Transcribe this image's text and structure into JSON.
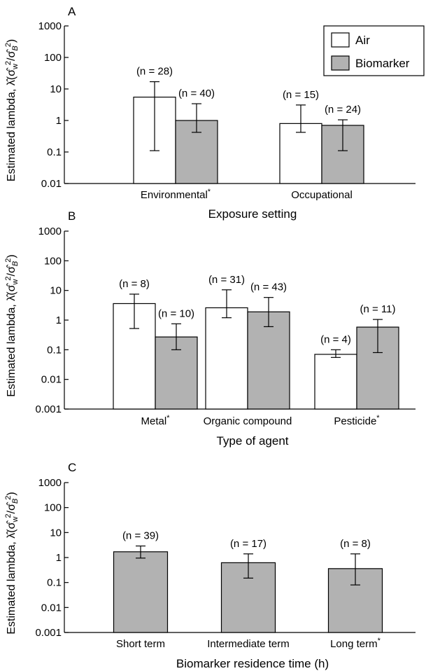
{
  "legend": {
    "items": [
      {
        "label": "Air",
        "color": "#ffffff"
      },
      {
        "label": "Biomarker",
        "color": "#b2b2b2"
      }
    ],
    "position": "top-right of panel A"
  },
  "ylabel_prefix": "Estimated lambda, λ̂(σ̂",
  "ylabel_mid": "w",
  "ylabel_sup1": "2",
  "ylabel_slash": "/σ̂",
  "ylabel_sub2": "B",
  "ylabel_sup2": "2",
  "ylabel_close": ")",
  "chart_data": [
    {
      "type": "bar",
      "panel": "A",
      "scale": "log",
      "ylim": [
        0.01,
        1000
      ],
      "ytick_labels": [
        "0.01",
        "0.1",
        "1",
        "10",
        "100",
        "1000"
      ],
      "xlabel": "Exposure setting",
      "categories": [
        "Environmental",
        "Occupational"
      ],
      "category_marks": [
        "*",
        ""
      ],
      "series": [
        {
          "name": "Air",
          "values": [
            5.5,
            0.8
          ],
          "err_low": [
            0.11,
            0.42
          ],
          "err_high": [
            17,
            3.1
          ],
          "n_labels": [
            "(n = 28)",
            "(n = 15)"
          ]
        },
        {
          "name": "Biomarker",
          "values": [
            1.0,
            0.7
          ],
          "err_low": [
            0.42,
            0.11
          ],
          "err_high": [
            3.4,
            1.05
          ],
          "n_labels": [
            "(n = 40)",
            "(n = 24)"
          ]
        }
      ]
    },
    {
      "type": "bar",
      "panel": "B",
      "scale": "log",
      "ylim": [
        0.001,
        1000
      ],
      "ytick_labels": [
        "0.001",
        "0.01",
        "0.1",
        "1",
        "10",
        "100",
        "1000"
      ],
      "xlabel": "Type of agent",
      "categories": [
        "Metal",
        "Organic compound",
        "Pesticide"
      ],
      "category_marks": [
        "*",
        "",
        "*"
      ],
      "series": [
        {
          "name": "Air",
          "values": [
            3.6,
            2.6,
            0.07
          ],
          "err_low": [
            0.52,
            1.2,
            0.055
          ],
          "err_high": [
            7.5,
            10.5,
            0.1
          ],
          "n_labels": [
            "(n = 8)",
            "(n = 31)",
            "(n = 4)"
          ]
        },
        {
          "name": "Biomarker",
          "values": [
            0.27,
            1.9,
            0.58
          ],
          "err_low": [
            0.1,
            0.6,
            0.08
          ],
          "err_high": [
            0.75,
            5.8,
            1.05
          ],
          "n_labels": [
            "(n = 10)",
            "(n = 43)",
            "(n = 11)"
          ]
        }
      ]
    },
    {
      "type": "bar",
      "panel": "C",
      "scale": "log",
      "ylim": [
        0.001,
        1000
      ],
      "ytick_labels": [
        "0.001",
        "0.01",
        "0.1",
        "1",
        "10",
        "100",
        "1000"
      ],
      "xlabel": "Biomarker residence time (h)",
      "categories": [
        "Short term",
        "Intermediate term",
        "Long term"
      ],
      "category_marks": [
        "",
        "",
        "*"
      ],
      "series": [
        {
          "name": "Biomarker",
          "values": [
            1.7,
            0.62,
            0.36
          ],
          "err_low": [
            0.95,
            0.15,
            0.08
          ],
          "err_high": [
            2.9,
            1.4,
            1.4
          ],
          "n_labels": [
            "(n = 39)",
            "(n = 17)",
            "(n = 8)"
          ]
        }
      ]
    }
  ]
}
